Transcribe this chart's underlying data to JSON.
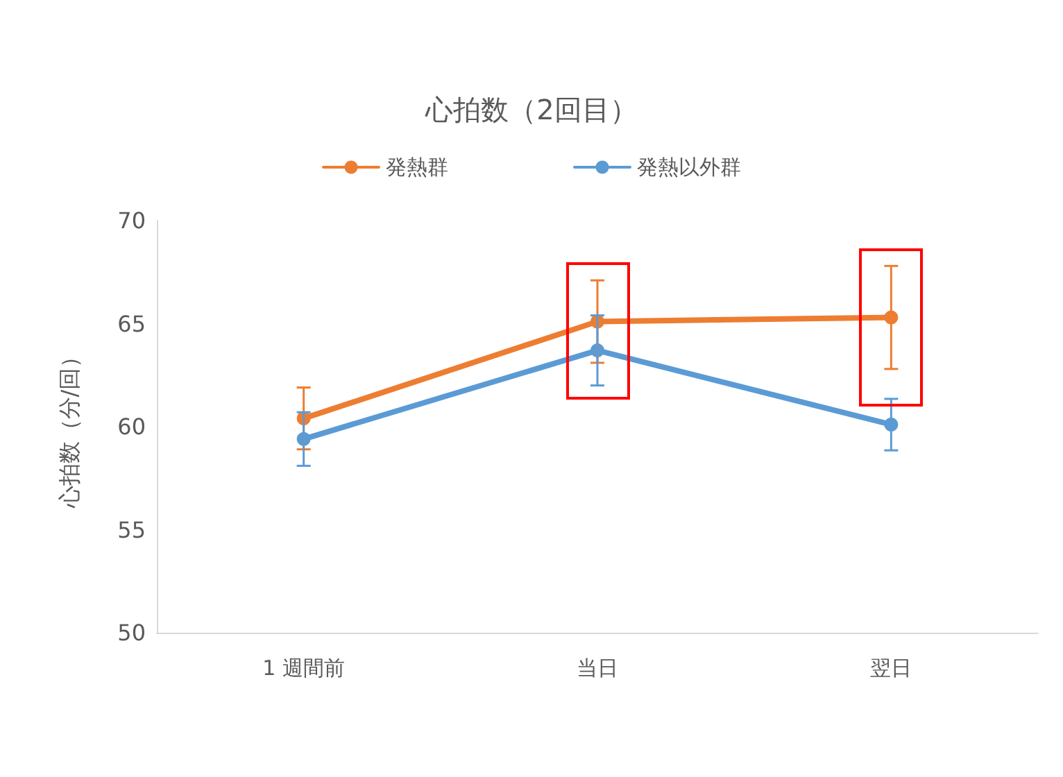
{
  "chart_data": {
    "type": "line",
    "title": "心拍数（2回目）",
    "ylabel": "心拍数（分/回）",
    "categories": [
      "1 週間前",
      "当日",
      "翌日"
    ],
    "series": [
      {
        "name": "発熱群",
        "color": "#ed7d31",
        "values": [
          60.4,
          65.1,
          65.3
        ],
        "errors": [
          1.5,
          2.0,
          2.5
        ]
      },
      {
        "name": "発熱以外群",
        "color": "#5b9bd5",
        "values": [
          59.4,
          63.7,
          60.1
        ],
        "errors": [
          1.3,
          1.7,
          1.25
        ]
      }
    ],
    "ylim": [
      50,
      70
    ],
    "yticks": [
      50,
      55,
      60,
      65,
      70
    ],
    "grid": false,
    "legend": "top",
    "marker": "circle",
    "line_style": "solid"
  }
}
